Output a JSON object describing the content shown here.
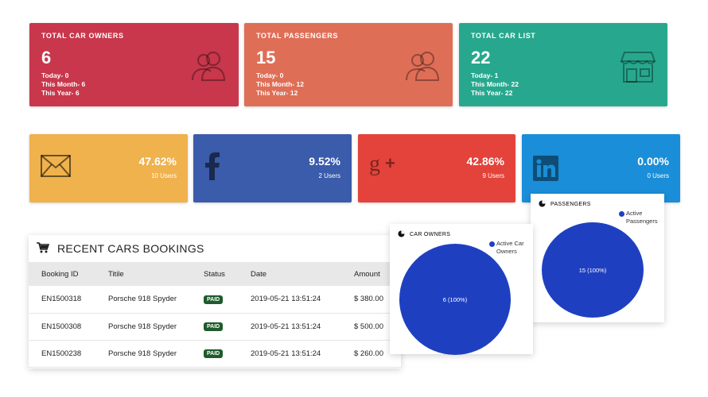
{
  "colors": {
    "red": "#c8374b",
    "orange": "#df6e57",
    "green": "#27a88e",
    "yellow": "#f0b24c",
    "facebook": "#3b5bab",
    "google": "#e3433a",
    "linkedin": "#1a8ed8",
    "pie_blue": "#1e40c0",
    "paid_badge": "#1f5b2c"
  },
  "stats": [
    {
      "title": "TOTAL CAR OWNERS",
      "value": "6",
      "today": "Today- 0",
      "month": "This Month- 6",
      "year": "This Year- 6",
      "icon": "users-icon"
    },
    {
      "title": "TOTAL PASSENGERS",
      "value": "15",
      "today": "Today- 0",
      "month": "This Month- 12",
      "year": "This Year- 12",
      "icon": "users-icon"
    },
    {
      "title": "TOTAL CAR LIST",
      "value": "22",
      "today": "Today- 1",
      "month": "This Month- 22",
      "year": "This Year- 22",
      "icon": "store-icon"
    }
  ],
  "social": [
    {
      "name": "email",
      "percent": "47.62%",
      "users": "10 Users",
      "icon": "envelope-icon"
    },
    {
      "name": "facebook",
      "percent": "9.52%",
      "users": "2 Users",
      "icon": "facebook-icon"
    },
    {
      "name": "google-plus",
      "percent": "42.86%",
      "users": "9 Users",
      "icon": "google-plus-icon"
    },
    {
      "name": "linkedin",
      "percent": "0.00%",
      "users": "0 Users",
      "icon": "linkedin-icon"
    }
  ],
  "bookings": {
    "title": "RECENT CARS BOOKINGS",
    "columns": [
      "Booking ID",
      "Titile",
      "Status",
      "Date",
      "Amount"
    ],
    "rows": [
      {
        "id": "EN1500318",
        "title": "Porsche 918 Spyder",
        "status": "PAID",
        "date": "2019-05-21 13:51:24",
        "amount": "$ 380.00"
      },
      {
        "id": "EN1500308",
        "title": "Porsche 918 Spyder",
        "status": "PAID",
        "date": "2019-05-21 13:51:24",
        "amount": "$ 500.00"
      },
      {
        "id": "EN1500238",
        "title": "Porsche 918 Spyder",
        "status": "PAID",
        "date": "2019-05-21 13:51:24",
        "amount": "$ 260.00"
      }
    ]
  },
  "car_owners_chart": {
    "title": "CAR OWNERS",
    "legend": "Active Car Owners",
    "slice_label": "6 (100%)",
    "chart_data": {
      "type": "pie",
      "categories": [
        "Active Car Owners"
      ],
      "values": [
        6
      ]
    }
  },
  "passengers_chart": {
    "title": "PASSENGERS",
    "legend": "Active Passengers",
    "slice_label": "15 (100%)",
    "chart_data": {
      "type": "pie",
      "categories": [
        "Active Passengers"
      ],
      "values": [
        15
      ]
    }
  }
}
